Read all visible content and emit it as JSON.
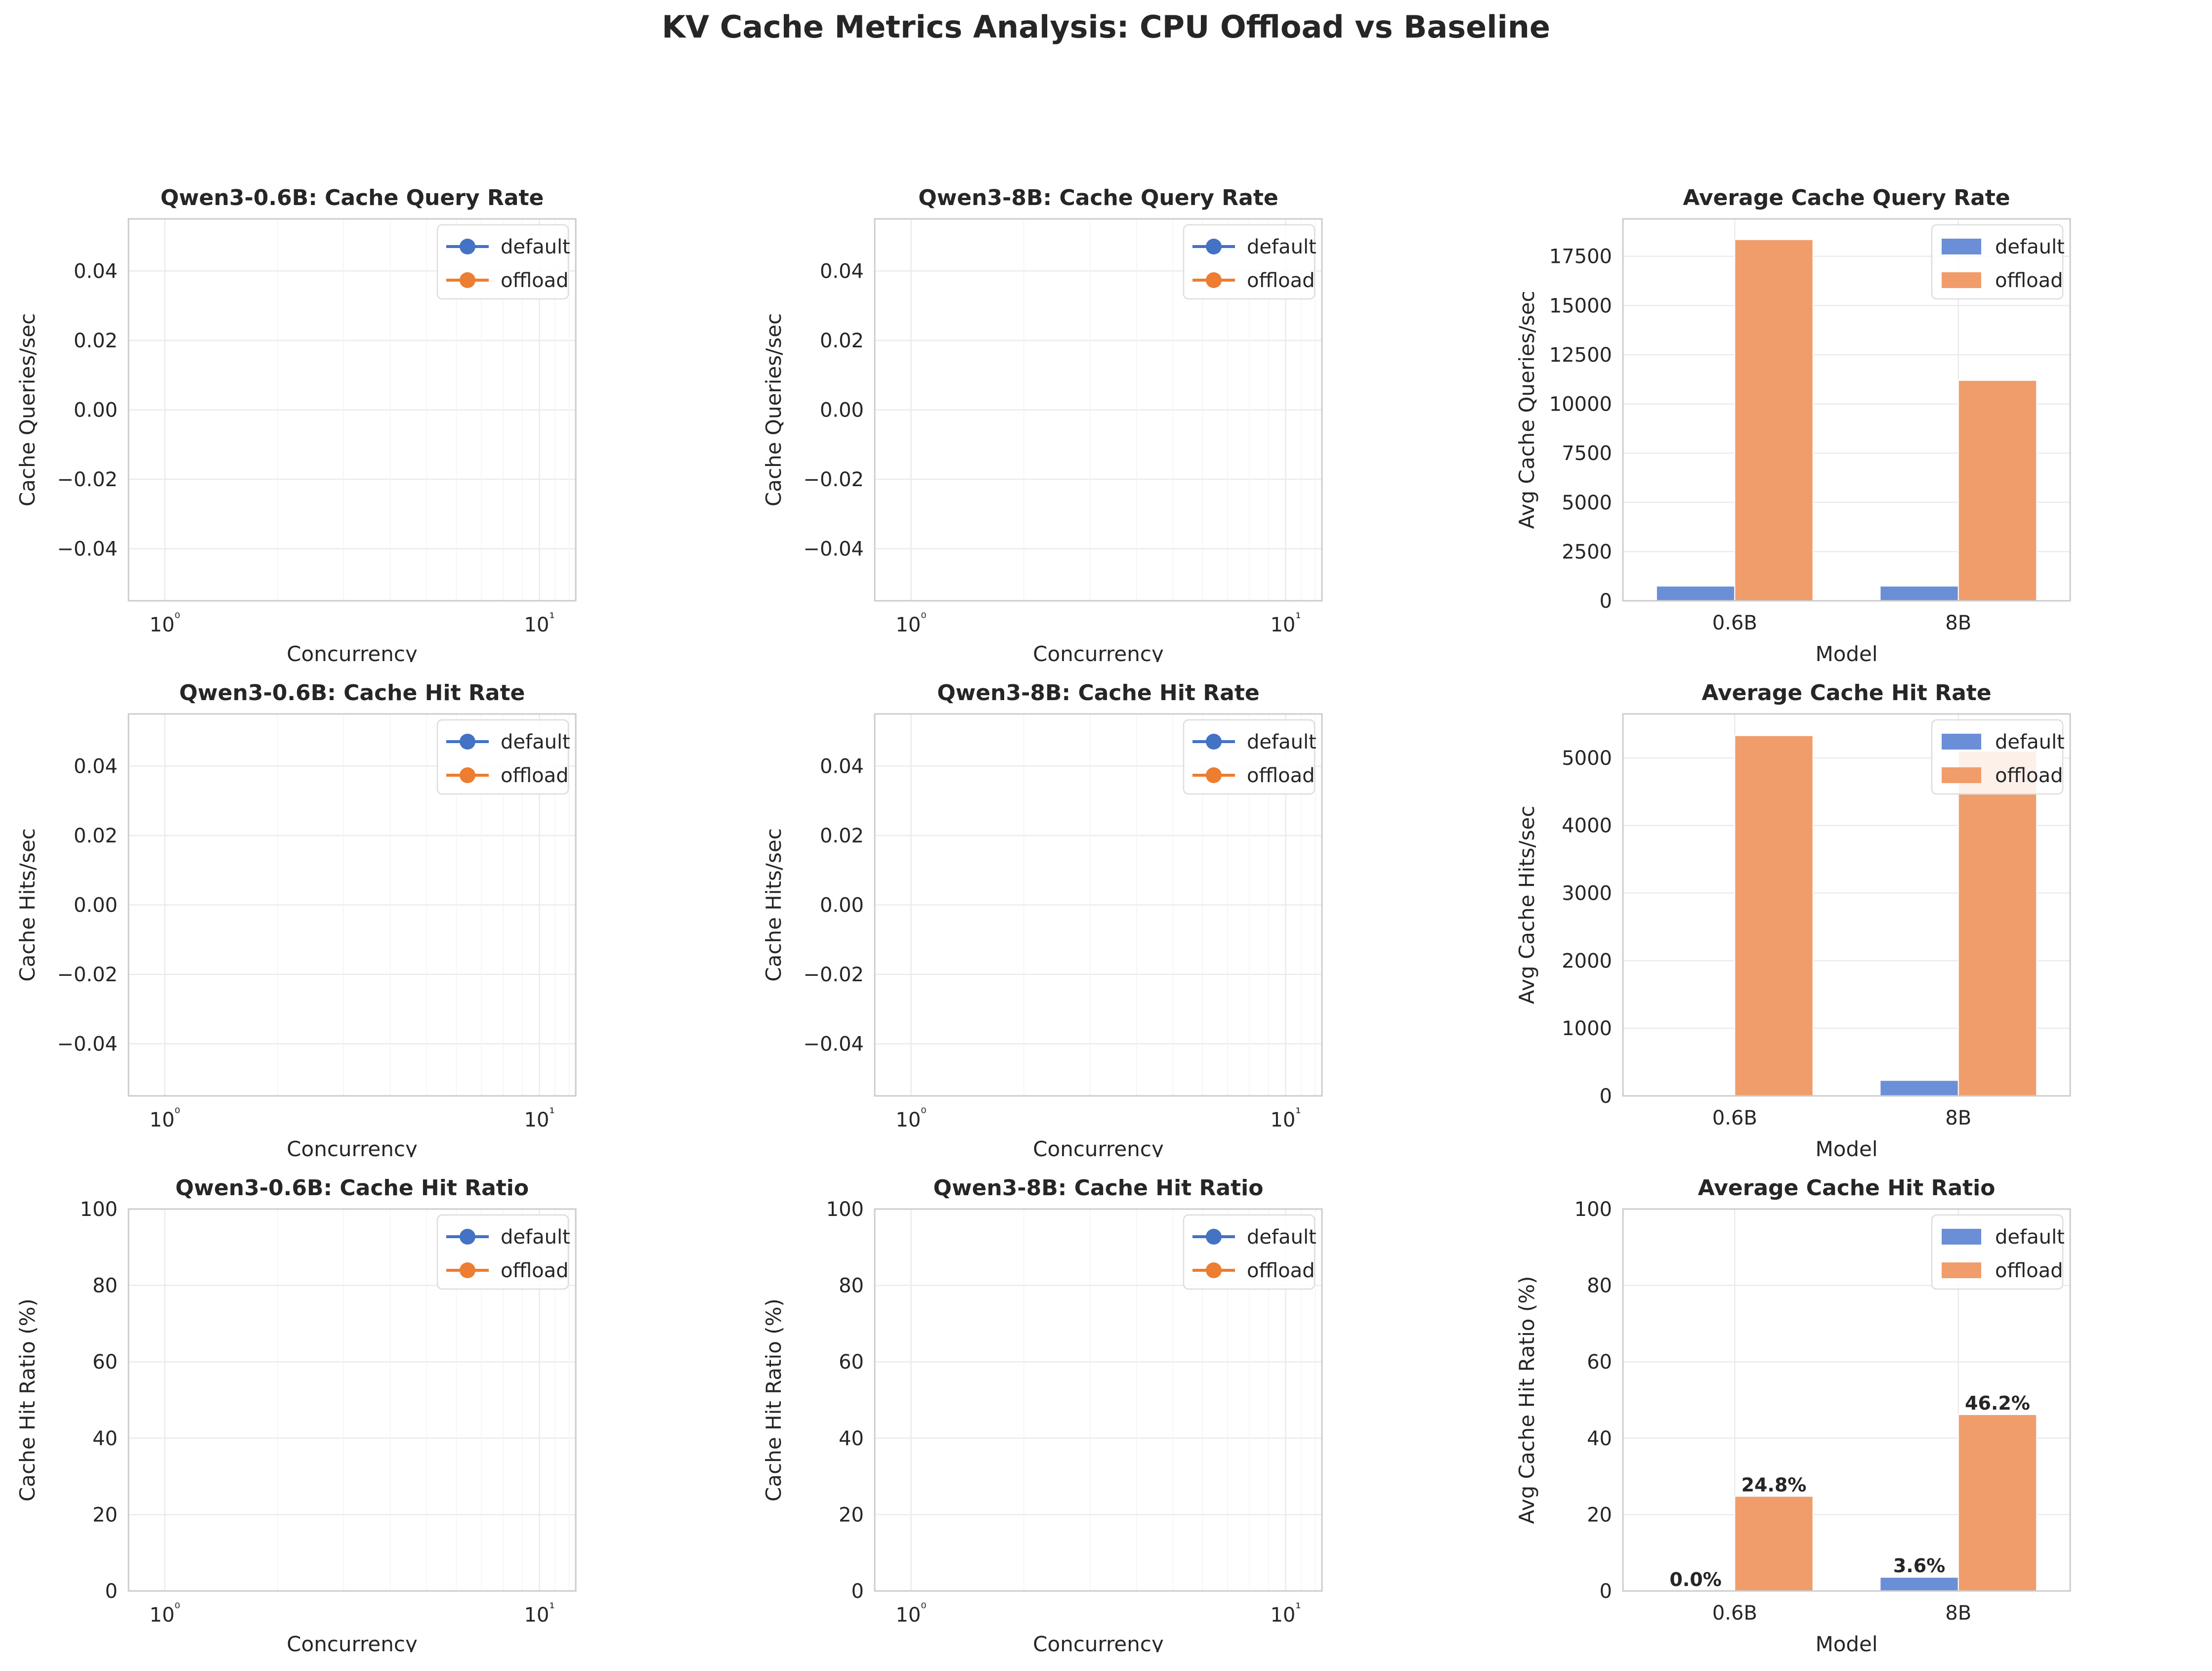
{
  "figure": {
    "title": "KV Cache Metrics Analysis: CPU Offload vs Baseline"
  },
  "colors": {
    "default": "#4472c4",
    "offload": "#ed7d31",
    "default_bar": "#6b8fd6",
    "offload_bar": "#f09d6b",
    "grid": "#ebebeb",
    "spine": "#cccccc",
    "text": "#262626"
  },
  "chart_data": [
    {
      "id": "p1",
      "type": "line",
      "title": "Qwen3-0.6B: Cache Query Rate",
      "xlabel": "Concurrency",
      "ylabel": "Cache Queries/sec",
      "x_scale": "log",
      "xlim": [
        0.8,
        12.5
      ],
      "ylim": [
        -0.055,
        0.055
      ],
      "y_ticks": [
        -0.04,
        -0.02,
        0.0,
        0.02,
        0.04
      ],
      "y_tick_labels": [
        "−0.04",
        "−0.02",
        "0.00",
        "0.02",
        "0.04"
      ],
      "x_ticks": [
        1,
        10
      ],
      "x_tick_labels": [
        "10⁰",
        "10¹"
      ],
      "series": [
        {
          "name": "default",
          "x": [],
          "y": []
        },
        {
          "name": "offload",
          "x": [],
          "y": []
        }
      ],
      "legend": "upper right",
      "grid": true
    },
    {
      "id": "p2",
      "type": "line",
      "title": "Qwen3-8B: Cache Query Rate",
      "xlabel": "Concurrency",
      "ylabel": "Cache Queries/sec",
      "x_scale": "log",
      "xlim": [
        0.8,
        12.5
      ],
      "ylim": [
        -0.055,
        0.055
      ],
      "y_ticks": [
        -0.04,
        -0.02,
        0.0,
        0.02,
        0.04
      ],
      "y_tick_labels": [
        "−0.04",
        "−0.02",
        "0.00",
        "0.02",
        "0.04"
      ],
      "x_ticks": [
        1,
        10
      ],
      "x_tick_labels": [
        "10⁰",
        "10¹"
      ],
      "series": [
        {
          "name": "default",
          "x": [],
          "y": []
        },
        {
          "name": "offload",
          "x": [],
          "y": []
        }
      ],
      "legend": "upper right",
      "grid": true
    },
    {
      "id": "p3",
      "type": "bar",
      "title": "Average Cache Query Rate",
      "xlabel": "Model",
      "ylabel": "Avg Cache Queries/sec",
      "categories": [
        "0.6B",
        "8B"
      ],
      "ylim": [
        0,
        19400
      ],
      "y_ticks": [
        0,
        2500,
        5000,
        7500,
        10000,
        12500,
        15000,
        17500
      ],
      "y_tick_labels": [
        "0",
        "2500",
        "5000",
        "7500",
        "10000",
        "12500",
        "15000",
        "17500"
      ],
      "series": [
        {
          "name": "default",
          "values": [
            750,
            750
          ]
        },
        {
          "name": "offload",
          "values": [
            18350,
            11200
          ]
        }
      ],
      "legend": "upper right",
      "grid": true
    },
    {
      "id": "p4",
      "type": "line",
      "title": "Qwen3-0.6B: Cache Hit Rate",
      "xlabel": "Concurrency",
      "ylabel": "Cache Hits/sec",
      "x_scale": "log",
      "xlim": [
        0.8,
        12.5
      ],
      "ylim": [
        -0.055,
        0.055
      ],
      "y_ticks": [
        -0.04,
        -0.02,
        0.0,
        0.02,
        0.04
      ],
      "y_tick_labels": [
        "−0.04",
        "−0.02",
        "0.00",
        "0.02",
        "0.04"
      ],
      "x_ticks": [
        1,
        10
      ],
      "x_tick_labels": [
        "10⁰",
        "10¹"
      ],
      "series": [
        {
          "name": "default",
          "x": [],
          "y": []
        },
        {
          "name": "offload",
          "x": [],
          "y": []
        }
      ],
      "legend": "upper right",
      "grid": true
    },
    {
      "id": "p5",
      "type": "line",
      "title": "Qwen3-8B: Cache Hit Rate",
      "xlabel": "Concurrency",
      "ylabel": "Cache Hits/sec",
      "x_scale": "log",
      "xlim": [
        0.8,
        12.5
      ],
      "ylim": [
        -0.055,
        0.055
      ],
      "y_ticks": [
        -0.04,
        -0.02,
        0.0,
        0.02,
        0.04
      ],
      "y_tick_labels": [
        "−0.04",
        "−0.02",
        "0.00",
        "0.02",
        "0.04"
      ],
      "x_ticks": [
        1,
        10
      ],
      "x_tick_labels": [
        "10⁰",
        "10¹"
      ],
      "series": [
        {
          "name": "default",
          "x": [],
          "y": []
        },
        {
          "name": "offload",
          "x": [],
          "y": []
        }
      ],
      "legend": "upper right",
      "grid": true
    },
    {
      "id": "p6",
      "type": "bar",
      "title": "Average Cache Hit Rate",
      "xlabel": "Model",
      "ylabel": "Avg Cache Hits/sec",
      "categories": [
        "0.6B",
        "8B"
      ],
      "ylim": [
        0,
        5650
      ],
      "y_ticks": [
        0,
        1000,
        2000,
        3000,
        4000,
        5000
      ],
      "y_tick_labels": [
        "0",
        "1000",
        "2000",
        "3000",
        "4000",
        "5000"
      ],
      "series": [
        {
          "name": "default",
          "values": [
            0,
            230
          ]
        },
        {
          "name": "offload",
          "values": [
            5330,
            5100
          ]
        }
      ],
      "legend": "upper right",
      "grid": true
    },
    {
      "id": "p7",
      "type": "line",
      "title": "Qwen3-0.6B: Cache Hit Ratio",
      "xlabel": "Concurrency",
      "ylabel": "Cache Hit Ratio (%)",
      "x_scale": "log",
      "xlim": [
        0.8,
        12.5
      ],
      "ylim": [
        0,
        100
      ],
      "y_ticks": [
        0,
        20,
        40,
        60,
        80,
        100
      ],
      "y_tick_labels": [
        "0",
        "20",
        "40",
        "60",
        "80",
        "100"
      ],
      "x_ticks": [
        1,
        10
      ],
      "x_tick_labels": [
        "10⁰",
        "10¹"
      ],
      "series": [
        {
          "name": "default",
          "x": [],
          "y": []
        },
        {
          "name": "offload",
          "x": [],
          "y": []
        }
      ],
      "legend": "upper right",
      "grid": true
    },
    {
      "id": "p8",
      "type": "line",
      "title": "Qwen3-8B: Cache Hit Ratio",
      "xlabel": "Concurrency",
      "ylabel": "Cache Hit Ratio (%)",
      "x_scale": "log",
      "xlim": [
        0.8,
        12.5
      ],
      "ylim": [
        0,
        100
      ],
      "y_ticks": [
        0,
        20,
        40,
        60,
        80,
        100
      ],
      "y_tick_labels": [
        "0",
        "20",
        "40",
        "60",
        "80",
        "100"
      ],
      "x_ticks": [
        1,
        10
      ],
      "x_tick_labels": [
        "10⁰",
        "10¹"
      ],
      "series": [
        {
          "name": "default",
          "x": [],
          "y": []
        },
        {
          "name": "offload",
          "x": [],
          "y": []
        }
      ],
      "legend": "upper right",
      "grid": true
    },
    {
      "id": "p9",
      "type": "bar",
      "title": "Average Cache Hit Ratio",
      "xlabel": "Model",
      "ylabel": "Avg Cache Hit Ratio (%)",
      "categories": [
        "0.6B",
        "8B"
      ],
      "ylim": [
        0,
        100
      ],
      "y_ticks": [
        0,
        20,
        40,
        60,
        80,
        100
      ],
      "y_tick_labels": [
        "0",
        "20",
        "40",
        "60",
        "80",
        "100"
      ],
      "series": [
        {
          "name": "default",
          "values": [
            0.0,
            3.6
          ],
          "labels": [
            "0.0%",
            "3.6%"
          ]
        },
        {
          "name": "offload",
          "values": [
            24.8,
            46.2
          ],
          "labels": [
            "24.8%",
            "46.2%"
          ]
        }
      ],
      "legend": "upper right",
      "grid": true
    }
  ]
}
